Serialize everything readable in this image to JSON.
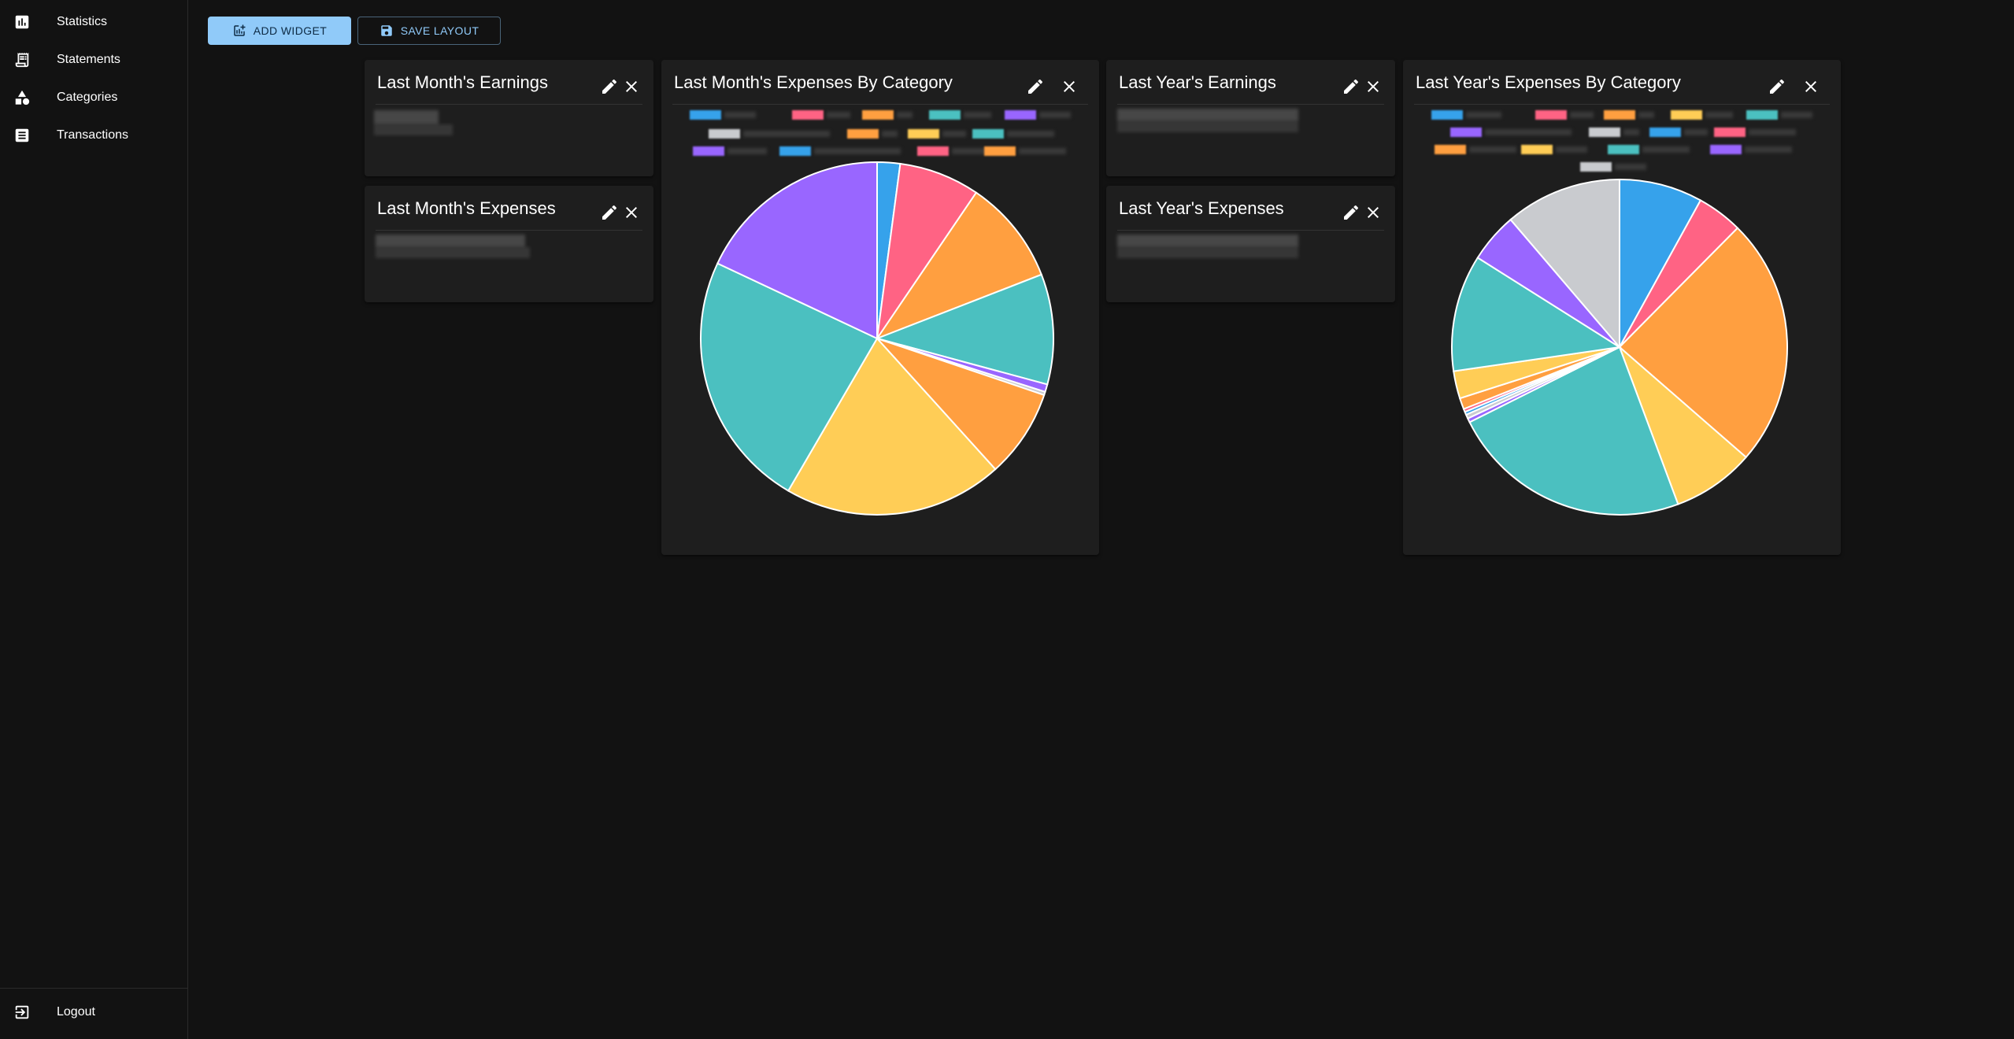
{
  "sidebar": {
    "items": [
      {
        "label": "Statistics",
        "icon": "bar-chart-icon"
      },
      {
        "label": "Statements",
        "icon": "receipt-icon"
      },
      {
        "label": "Categories",
        "icon": "category-shapes-icon"
      },
      {
        "label": "Transactions",
        "icon": "list-icon"
      }
    ],
    "logout": {
      "label": "Logout",
      "icon": "logout-icon"
    }
  },
  "toolbar": {
    "add_widget_label": "ADD WIDGET",
    "save_layout_label": "SAVE LAYOUT"
  },
  "widgets": {
    "last_month_earnings": {
      "title": "Last Month's Earnings"
    },
    "last_month_expenses": {
      "title": "Last Month's Expenses"
    },
    "last_month_expenses_by_category": {
      "title": "Last Month's Expenses By Category"
    },
    "last_year_earnings": {
      "title": "Last Year's Earnings"
    },
    "last_year_expenses": {
      "title": "Last Year's Expenses"
    },
    "last_year_expenses_by_category": {
      "title": "Last Year's Expenses By Category"
    }
  },
  "colors": {
    "background": "#121212",
    "card": "#1e1e1e",
    "primary": "#90caf9",
    "blue": "#36a2eb",
    "pink": "#ff6384",
    "orange": "#ff9f40",
    "yellow": "#ffcd56",
    "teal": "#4bc0c0",
    "purple": "#9966ff",
    "grey": "#c9cbcf"
  },
  "chart_data": [
    {
      "type": "pie",
      "title": "Last Month's Expenses By Category",
      "legend_position": "top",
      "slices": [
        {
          "color": "#36a2eb",
          "value": 2.1
        },
        {
          "color": "#ff6384",
          "value": 7.4
        },
        {
          "color": "#ff9f40",
          "value": 9.6
        },
        {
          "color": "#4bc0c0",
          "value": 10.1
        },
        {
          "color": "#9966ff",
          "value": 0.7
        },
        {
          "color": "#c9cbcf",
          "value": 0.3
        },
        {
          "color": "#ff9f40",
          "value": 8.1
        },
        {
          "color": "#ffcd56",
          "value": 20.1
        },
        {
          "color": "#4bc0c0",
          "value": 23.6
        },
        {
          "color": "#9966ff",
          "value": 18.0
        }
      ]
    },
    {
      "type": "pie",
      "title": "Last Year's Expenses By Category",
      "legend_position": "top",
      "slices": [
        {
          "color": "#36a2eb",
          "value": 8.2
        },
        {
          "color": "#ff6384",
          "value": 4.5
        },
        {
          "color": "#ff9f40",
          "value": 24.5
        },
        {
          "color": "#ffcd56",
          "value": 8.1
        },
        {
          "color": "#4bc0c0",
          "value": 23.8
        },
        {
          "color": "#9966ff",
          "value": 0.4
        },
        {
          "color": "#c9cbcf",
          "value": 0.4
        },
        {
          "color": "#36a2eb",
          "value": 0.3
        },
        {
          "color": "#ff6384",
          "value": 0.3
        },
        {
          "color": "#ff9f40",
          "value": 1.1
        },
        {
          "color": "#ffcd56",
          "value": 2.7
        },
        {
          "color": "#4bc0c0",
          "value": 11.5
        },
        {
          "color": "#9966ff",
          "value": 4.9
        },
        {
          "color": "#c9cbcf",
          "value": 11.5
        }
      ]
    }
  ]
}
